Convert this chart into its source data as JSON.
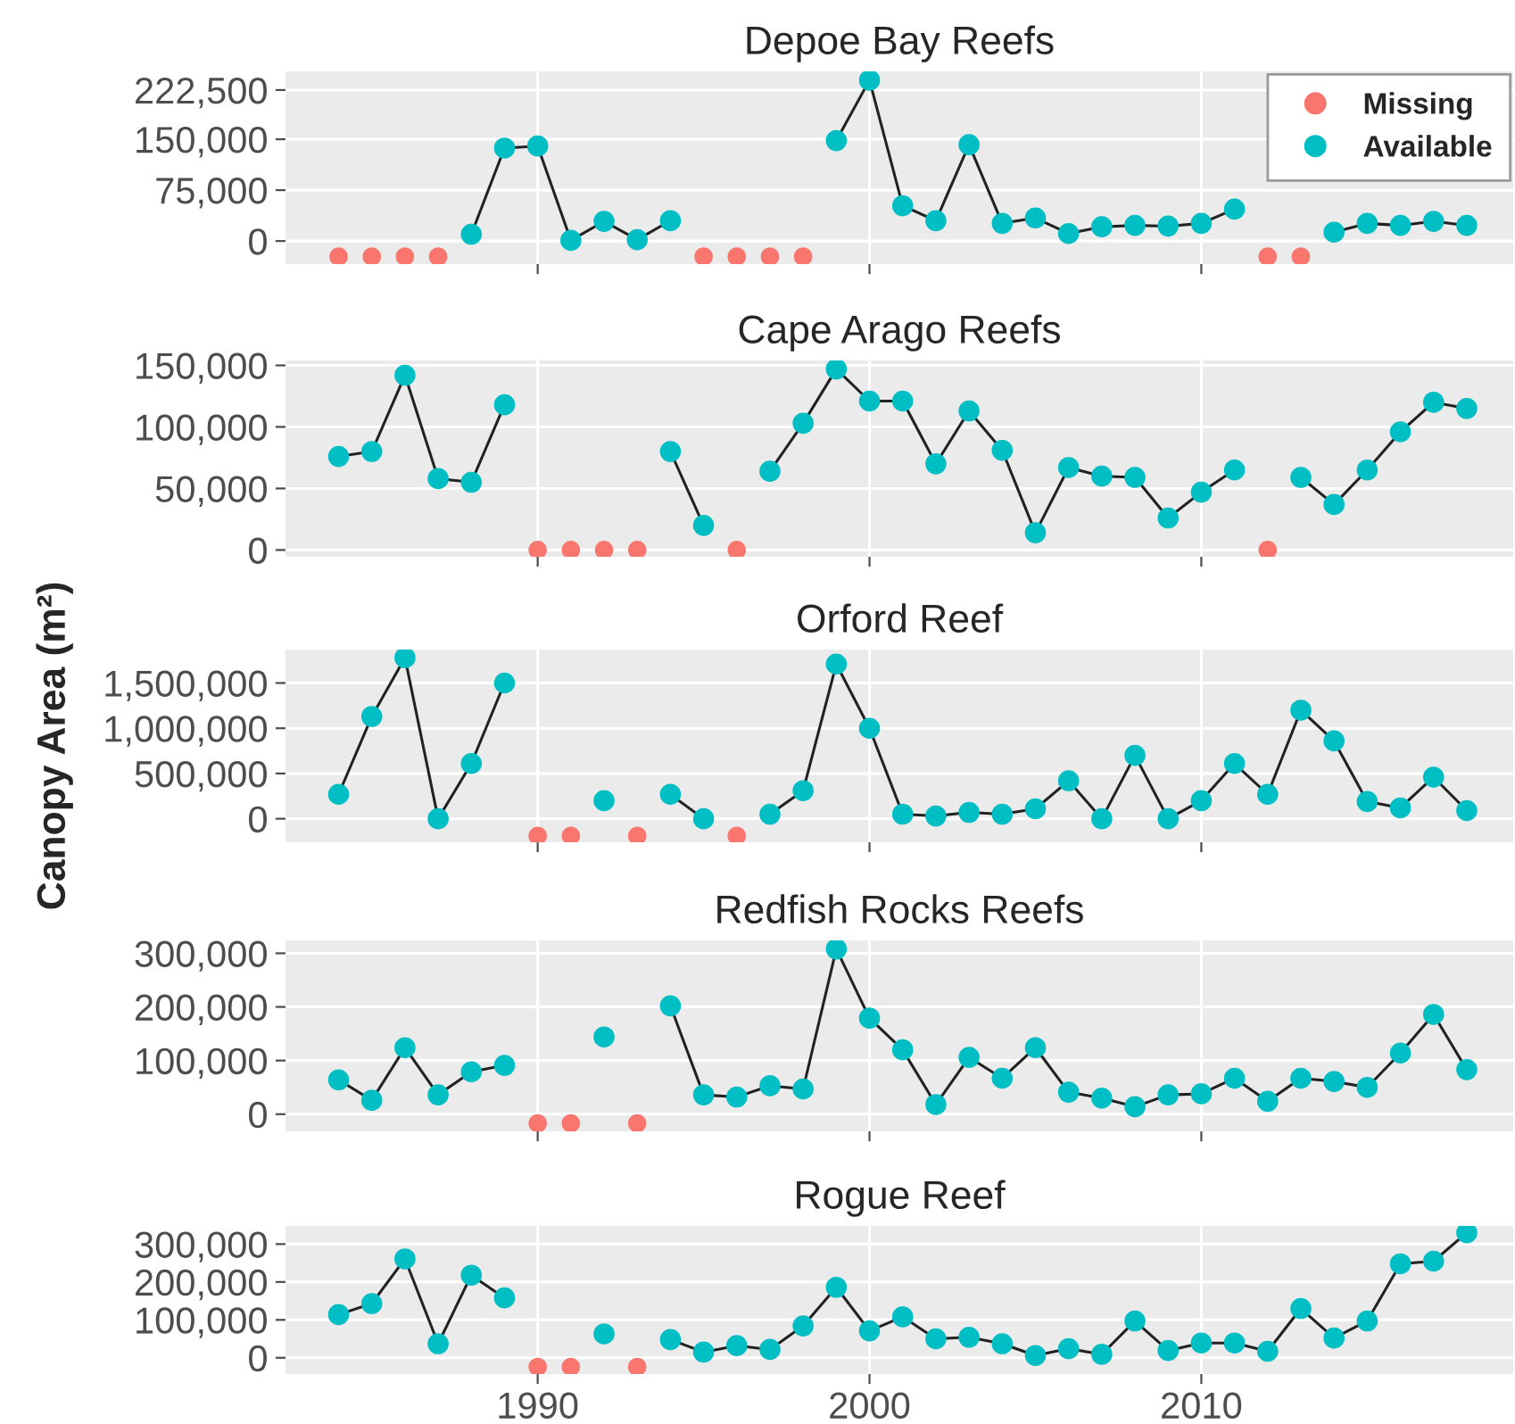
{
  "chart_data": [
    {
      "type": "line",
      "title": "Depoe Bay Reefs",
      "x": [
        1984,
        1985,
        1986,
        1987,
        1988,
        1989,
        1990,
        1991,
        1992,
        1993,
        1994,
        1995,
        1996,
        1997,
        1998,
        1999,
        2000,
        2001,
        2002,
        2003,
        2004,
        2005,
        2006,
        2007,
        2008,
        2009,
        2010,
        2011,
        2012,
        2013,
        2014,
        2015,
        2016,
        2017,
        2018
      ],
      "xlim": [
        1982.4,
        2019.4
      ],
      "xticks": [
        1990,
        2000,
        2010
      ],
      "ylim": [
        -34000,
        250000
      ],
      "yticks": [
        0,
        {
          "value": 75000,
          "label": "75,000"
        },
        {
          "value": 150000,
          "label": "150,000"
        },
        {
          "value": 222500,
          "label": "222,500"
        }
      ],
      "grid": true,
      "marker": "circle",
      "legend": "top right",
      "tick_labels": "y",
      "series": [
        {
          "name": "Missing",
          "type": "scatter",
          "color": "#f8766d",
          "values": [
            -23000,
            -23000,
            -23000,
            -23000,
            null,
            null,
            null,
            null,
            null,
            null,
            null,
            -23000,
            -23000,
            -23000,
            -23000,
            null,
            null,
            null,
            null,
            null,
            null,
            null,
            null,
            null,
            null,
            null,
            null,
            null,
            -23000,
            -23000,
            null,
            null,
            null,
            null,
            null
          ]
        },
        {
          "name": "Available",
          "color": "#00bfc4",
          "values": [
            null,
            null,
            null,
            null,
            10000,
            137000,
            140000,
            1000,
            29000,
            2000,
            30000,
            null,
            null,
            null,
            null,
            148000,
            237000,
            52000,
            30000,
            142000,
            26000,
            34000,
            11000,
            21000,
            23000,
            22000,
            26000,
            47000,
            null,
            null,
            13000,
            26000,
            23000,
            29000,
            23000
          ]
        }
      ]
    },
    {
      "type": "line",
      "title": "Cape Arago Reefs",
      "x": [
        1984,
        1985,
        1986,
        1987,
        1988,
        1989,
        1990,
        1991,
        1992,
        1993,
        1994,
        1995,
        1996,
        1997,
        1998,
        1999,
        2000,
        2001,
        2002,
        2003,
        2004,
        2005,
        2006,
        2007,
        2008,
        2009,
        2010,
        2011,
        2012,
        2013,
        2014,
        2015,
        2016,
        2017,
        2018
      ],
      "xlim": [
        1982.4,
        2019.4
      ],
      "xticks": [
        1990,
        2000,
        2010
      ],
      "ylim": [
        -5500,
        154000
      ],
      "yticks": [
        0,
        {
          "value": 50000,
          "label": "50,000"
        },
        {
          "value": 100000,
          "label": "100,000"
        },
        {
          "value": 150000,
          "label": "150,000"
        }
      ],
      "grid": true,
      "marker": "circle",
      "tick_labels": "y",
      "series": [
        {
          "type": "scatter",
          "color": "#f8766d",
          "values": [
            null,
            null,
            null,
            null,
            null,
            null,
            0,
            0,
            0,
            0,
            null,
            null,
            0,
            null,
            null,
            null,
            null,
            null,
            null,
            null,
            null,
            null,
            null,
            null,
            null,
            null,
            null,
            null,
            0,
            null,
            null,
            null,
            null,
            null,
            null
          ]
        },
        {
          "color": "#00bfc4",
          "values": [
            76000,
            80000,
            142000,
            58000,
            55000,
            118000,
            null,
            null,
            null,
            null,
            80000,
            20000,
            null,
            64000,
            103000,
            147000,
            121000,
            121000,
            70000,
            113000,
            81000,
            14000,
            67000,
            60000,
            59000,
            26000,
            47000,
            65000,
            null,
            59000,
            37000,
            65000,
            96000,
            120000,
            115000
          ]
        }
      ]
    },
    {
      "type": "line",
      "title": "Orford Reef",
      "ylabel": "Canopy Area (m²)",
      "x": [
        1984,
        1985,
        1986,
        1987,
        1988,
        1989,
        1990,
        1991,
        1992,
        1993,
        1994,
        1995,
        1996,
        1997,
        1998,
        1999,
        2000,
        2001,
        2002,
        2003,
        2004,
        2005,
        2006,
        2007,
        2008,
        2009,
        2010,
        2011,
        2012,
        2013,
        2014,
        2015,
        2016,
        2017,
        2018
      ],
      "xlim": [
        1982.4,
        2019.4
      ],
      "xticks": [
        1990,
        2000,
        2010
      ],
      "ylim": [
        -260000,
        1870000
      ],
      "yticks": [
        0,
        {
          "value": 500000,
          "label": "500,000"
        },
        {
          "value": 1000000,
          "label": "1,000,000"
        },
        {
          "value": 1500000,
          "label": "1,500,000"
        }
      ],
      "grid": true,
      "marker": "circle",
      "tick_labels": "y",
      "series": [
        {
          "type": "scatter",
          "color": "#f8766d",
          "values": [
            null,
            null,
            null,
            null,
            null,
            null,
            -190000,
            -190000,
            null,
            -190000,
            null,
            null,
            -190000,
            null,
            null,
            null,
            null,
            null,
            null,
            null,
            null,
            null,
            null,
            null,
            null,
            null,
            null,
            null,
            null,
            null,
            null,
            null,
            null,
            null,
            null
          ]
        },
        {
          "color": "#00bfc4",
          "values": [
            270000,
            1130000,
            1780000,
            0,
            610000,
            1500000,
            null,
            null,
            200000,
            null,
            270000,
            0,
            null,
            50000,
            310000,
            1710000,
            1000000,
            50000,
            30000,
            70000,
            50000,
            110000,
            420000,
            0,
            700000,
            0,
            200000,
            610000,
            270000,
            1200000,
            860000,
            190000,
            120000,
            460000,
            90000
          ]
        }
      ]
    },
    {
      "type": "line",
      "title": "Redfish Rocks Reefs",
      "x": [
        1984,
        1985,
        1986,
        1987,
        1988,
        1989,
        1990,
        1991,
        1992,
        1993,
        1994,
        1995,
        1996,
        1997,
        1998,
        1999,
        2000,
        2001,
        2002,
        2003,
        2004,
        2005,
        2006,
        2007,
        2008,
        2009,
        2010,
        2011,
        2012,
        2013,
        2014,
        2015,
        2016,
        2017,
        2018
      ],
      "xlim": [
        1982.4,
        2019.4
      ],
      "xticks": [
        1990,
        2000,
        2010
      ],
      "ylim": [
        -32000,
        324000
      ],
      "yticks": [
        0,
        {
          "value": 100000,
          "label": "100,000"
        },
        {
          "value": 200000,
          "label": "200,000"
        },
        {
          "value": 300000,
          "label": "300,000"
        }
      ],
      "grid": true,
      "marker": "circle",
      "tick_labels": "y",
      "series": [
        {
          "type": "scatter",
          "color": "#f8766d",
          "values": [
            null,
            null,
            null,
            null,
            null,
            null,
            -17000,
            -17000,
            null,
            -17000,
            null,
            null,
            null,
            null,
            null,
            null,
            null,
            null,
            null,
            null,
            null,
            null,
            null,
            null,
            null,
            null,
            null,
            null,
            null,
            null,
            null,
            null,
            null,
            null,
            null
          ]
        },
        {
          "color": "#00bfc4",
          "values": [
            64000,
            26000,
            124000,
            36000,
            79000,
            91000,
            null,
            null,
            144000,
            null,
            202000,
            36000,
            32000,
            53000,
            47000,
            308000,
            179000,
            120000,
            18000,
            106000,
            67000,
            124000,
            41000,
            30000,
            14000,
            36000,
            38000,
            67000,
            24000,
            67000,
            61000,
            50000,
            114000,
            186000,
            83000
          ]
        }
      ]
    },
    {
      "type": "line",
      "title": "Rogue Reef",
      "x": [
        1984,
        1985,
        1986,
        1987,
        1988,
        1989,
        1990,
        1991,
        1992,
        1993,
        1994,
        1995,
        1996,
        1997,
        1998,
        1999,
        2000,
        2001,
        2002,
        2003,
        2004,
        2005,
        2006,
        2007,
        2008,
        2009,
        2010,
        2011,
        2012,
        2013,
        2014,
        2015,
        2016,
        2017,
        2018
      ],
      "xlim": [
        1982.4,
        2019.4
      ],
      "xticks": [
        1990,
        2000,
        2010
      ],
      "ylim": [
        -43000,
        348000
      ],
      "yticks": [
        0,
        {
          "value": 100000,
          "label": "100,000"
        },
        {
          "value": 200000,
          "label": "200,000"
        },
        {
          "value": 300000,
          "label": "300,000"
        }
      ],
      "grid": true,
      "marker": "circle",
      "series": [
        {
          "type": "scatter",
          "color": "#f8766d",
          "values": [
            null,
            null,
            null,
            null,
            null,
            null,
            -24000,
            -24000,
            null,
            -24000,
            null,
            null,
            null,
            null,
            null,
            null,
            null,
            null,
            null,
            null,
            null,
            null,
            null,
            null,
            null,
            null,
            null,
            null,
            null,
            null,
            null,
            null,
            null,
            null,
            null
          ]
        },
        {
          "color": "#00bfc4",
          "values": [
            114000,
            143000,
            261000,
            37000,
            218000,
            158000,
            null,
            null,
            63000,
            null,
            48000,
            15000,
            32000,
            22000,
            84000,
            186000,
            71000,
            108000,
            50000,
            54000,
            37000,
            6000,
            24000,
            9000,
            97000,
            19000,
            39000,
            39000,
            17000,
            130000,
            52000,
            97000,
            248000,
            255000,
            330000
          ]
        }
      ]
    }
  ]
}
